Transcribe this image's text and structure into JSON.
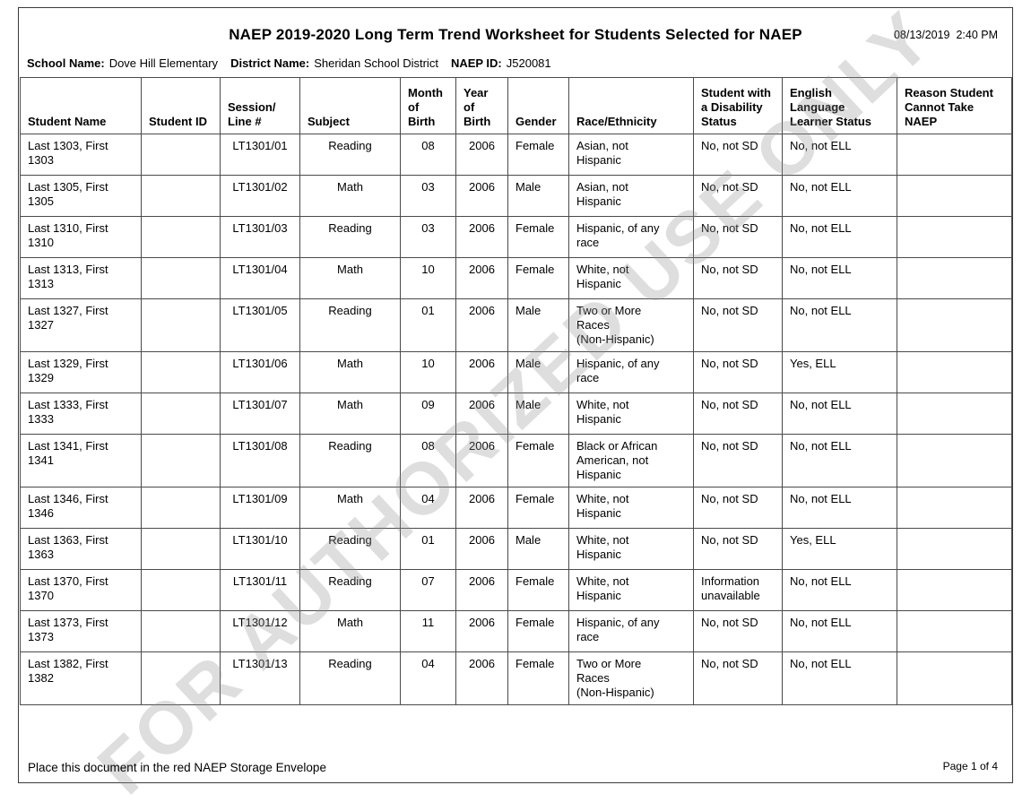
{
  "page": {
    "title": "NAEP 2019-2020 Long Term Trend Worksheet for Students Selected for NAEP",
    "timestamp": "08/13/2019  2:40 PM",
    "watermark": "FOR AUTHORIZED USE ONLY",
    "footer_left": "Place this document in the red NAEP Storage Envelope",
    "footer_right": "Page 1 of 4"
  },
  "school_info": {
    "school_label": "School Name:",
    "school_value": "Dove Hill Elementary",
    "district_label": "District Name:",
    "district_value": "Sheridan School District",
    "naep_id_label": "NAEP ID:",
    "naep_id_value": "J520081"
  },
  "table": {
    "headers": [
      "Student Name",
      "Student ID",
      "Session/\nLine #",
      "Subject",
      "Month\nof\nBirth",
      "Year\nof\nBirth",
      "Gender",
      "Race/Ethnicity",
      "Student with\na Disability\nStatus",
      "English\nLanguage\nLearner Status",
      "Reason Student\nCannot Take\nNAEP"
    ],
    "column_keys": [
      "student_name",
      "student_id",
      "session_line",
      "subject",
      "month_of_birth",
      "year_of_birth",
      "gender",
      "race_ethnicity",
      "disability_status",
      "ell_status",
      "reason_cannot_take"
    ],
    "rows": [
      {
        "student_name": "Last 1303, First\n1303",
        "student_id": "",
        "session_line": "LT1301/01",
        "subject": "Reading",
        "month_of_birth": "08",
        "year_of_birth": "2006",
        "gender": "Female",
        "race_ethnicity": "Asian, not\nHispanic",
        "disability_status": "No, not SD",
        "ell_status": "No, not ELL",
        "reason_cannot_take": ""
      },
      {
        "student_name": "Last 1305, First\n1305",
        "student_id": "",
        "session_line": "LT1301/02",
        "subject": "Math",
        "month_of_birth": "03",
        "year_of_birth": "2006",
        "gender": "Male",
        "race_ethnicity": "Asian, not\nHispanic",
        "disability_status": "No, not SD",
        "ell_status": "No, not ELL",
        "reason_cannot_take": ""
      },
      {
        "student_name": "Last 1310, First\n1310",
        "student_id": "",
        "session_line": "LT1301/03",
        "subject": "Reading",
        "month_of_birth": "03",
        "year_of_birth": "2006",
        "gender": "Female",
        "race_ethnicity": "Hispanic, of any\nrace",
        "disability_status": "No, not SD",
        "ell_status": "No, not ELL",
        "reason_cannot_take": ""
      },
      {
        "student_name": "Last 1313, First\n1313",
        "student_id": "",
        "session_line": "LT1301/04",
        "subject": "Math",
        "month_of_birth": "10",
        "year_of_birth": "2006",
        "gender": "Female",
        "race_ethnicity": "White, not\nHispanic",
        "disability_status": "No, not SD",
        "ell_status": "No, not ELL",
        "reason_cannot_take": ""
      },
      {
        "student_name": "Last 1327, First\n1327",
        "student_id": "",
        "session_line": "LT1301/05",
        "subject": "Reading",
        "month_of_birth": "01",
        "year_of_birth": "2006",
        "gender": "Male",
        "race_ethnicity": "Two or More\nRaces\n(Non-Hispanic)",
        "disability_status": "No, not SD",
        "ell_status": "No, not ELL",
        "reason_cannot_take": ""
      },
      {
        "student_name": "Last 1329, First\n1329",
        "student_id": "",
        "session_line": "LT1301/06",
        "subject": "Math",
        "month_of_birth": "10",
        "year_of_birth": "2006",
        "gender": "Male",
        "race_ethnicity": "Hispanic, of any\nrace",
        "disability_status": "No, not SD",
        "ell_status": "Yes, ELL",
        "reason_cannot_take": ""
      },
      {
        "student_name": "Last 1333, First\n1333",
        "student_id": "",
        "session_line": "LT1301/07",
        "subject": "Math",
        "month_of_birth": "09",
        "year_of_birth": "2006",
        "gender": "Male",
        "race_ethnicity": "White, not\nHispanic",
        "disability_status": "No, not SD",
        "ell_status": "No, not ELL",
        "reason_cannot_take": ""
      },
      {
        "student_name": "Last 1341, First\n1341",
        "student_id": "",
        "session_line": "LT1301/08",
        "subject": "Reading",
        "month_of_birth": "08",
        "year_of_birth": "2006",
        "gender": "Female",
        "race_ethnicity": "Black or African\nAmerican, not\nHispanic",
        "disability_status": "No, not SD",
        "ell_status": "No, not ELL",
        "reason_cannot_take": ""
      },
      {
        "student_name": "Last 1346, First\n1346",
        "student_id": "",
        "session_line": "LT1301/09",
        "subject": "Math",
        "month_of_birth": "04",
        "year_of_birth": "2006",
        "gender": "Female",
        "race_ethnicity": "White, not\nHispanic",
        "disability_status": "No, not SD",
        "ell_status": "No, not ELL",
        "reason_cannot_take": ""
      },
      {
        "student_name": "Last 1363, First\n1363",
        "student_id": "",
        "session_line": "LT1301/10",
        "subject": "Reading",
        "month_of_birth": "01",
        "year_of_birth": "2006",
        "gender": "Male",
        "race_ethnicity": "White, not\nHispanic",
        "disability_status": "No, not SD",
        "ell_status": "Yes, ELL",
        "reason_cannot_take": ""
      },
      {
        "student_name": "Last 1370, First\n1370",
        "student_id": "",
        "session_line": "LT1301/11",
        "subject": "Reading",
        "month_of_birth": "07",
        "year_of_birth": "2006",
        "gender": "Female",
        "race_ethnicity": "White, not\nHispanic",
        "disability_status": "Information\nunavailable",
        "ell_status": "No, not ELL",
        "reason_cannot_take": ""
      },
      {
        "student_name": "Last 1373, First\n1373",
        "student_id": "",
        "session_line": "LT1301/12",
        "subject": "Math",
        "month_of_birth": "11",
        "year_of_birth": "2006",
        "gender": "Female",
        "race_ethnicity": "Hispanic, of any\nrace",
        "disability_status": "No, not SD",
        "ell_status": "No, not ELL",
        "reason_cannot_take": ""
      },
      {
        "student_name": "Last 1382, First\n1382",
        "student_id": "",
        "session_line": "LT1301/13",
        "subject": "Reading",
        "month_of_birth": "04",
        "year_of_birth": "2006",
        "gender": "Female",
        "race_ethnicity": "Two or More\nRaces\n(Non-Hispanic)",
        "disability_status": "No, not SD",
        "ell_status": "No, not ELL",
        "reason_cannot_take": ""
      }
    ]
  }
}
